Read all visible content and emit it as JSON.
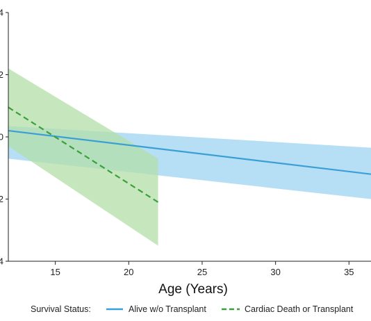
{
  "chart_data": {
    "type": "line",
    "xlabel": "Age (Years)",
    "ylabel": "",
    "x_ticks": [
      15,
      20,
      25,
      30,
      35
    ],
    "y_ticks": [
      4,
      2,
      0,
      2,
      4
    ],
    "xlim": [
      11.8,
      36.5
    ],
    "ylim": [
      -4,
      4
    ],
    "grid": false,
    "legend_title": "Survival Status:",
    "legend_position": "bottom",
    "series": [
      {
        "name": "Alive w/o Transplant",
        "color": "#3a9fd6",
        "band_color": "#a9d8f3",
        "line_style": "solid",
        "x": [
          11.8,
          36.5
        ],
        "y": [
          0.2,
          -1.2
        ],
        "ci_lower": [
          -0.7,
          -2.0
        ],
        "ci_upper": [
          0.35,
          -0.35
        ]
      },
      {
        "name": "Cardiac Death or Transplant",
        "color": "#3aa03a",
        "band_color": "#b3dfa8",
        "line_style": "dashed",
        "x": [
          11.8,
          22
        ],
        "y": [
          0.95,
          -2.1
        ],
        "ci_lower": [
          -0.3,
          -3.5
        ],
        "ci_upper": [
          2.2,
          -0.7
        ]
      }
    ]
  }
}
